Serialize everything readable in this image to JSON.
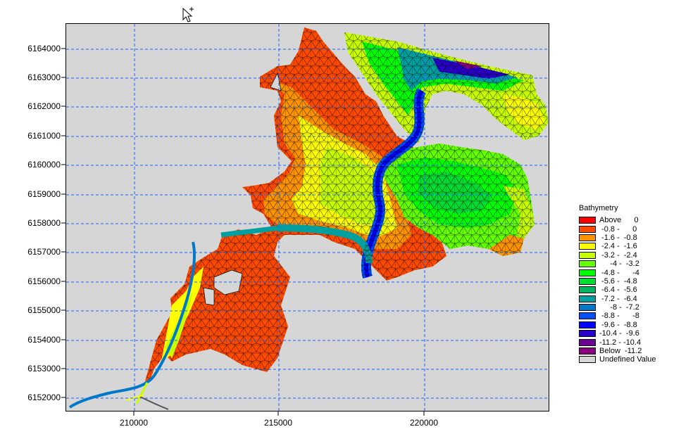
{
  "map": {
    "y_ticks": [
      "6164000",
      "6163000",
      "6162000",
      "6161000",
      "6160000",
      "6159000",
      "6158000",
      "6157000",
      "6156000",
      "6155000",
      "6154000",
      "6153000",
      "6152000"
    ],
    "x_ticks": [
      "210000",
      "215000",
      "220000"
    ],
    "background_color": "#d6d6d6",
    "grid_color": "#1e64ff"
  },
  "legend": {
    "title": "Bathymetry",
    "items": [
      {
        "label": "Above      0",
        "color": "#ff0000"
      },
      {
        "label": " -0.8 -      0",
        "color": "#ff4a00"
      },
      {
        "label": " -1.6 -  -0.8",
        "color": "#ff9400"
      },
      {
        "label": " -2.4 -  -1.6",
        "color": "#ffff00"
      },
      {
        "label": " -3.2 -  -2.4",
        "color": "#c8ff00"
      },
      {
        "label": "     -4 -  -3.2",
        "color": "#64ff00"
      },
      {
        "label": " -4.8 -      -4",
        "color": "#00ff00"
      },
      {
        "label": " -5.6 -  -4.8",
        "color": "#00dc32"
      },
      {
        "label": " -6.4 -  -5.6",
        "color": "#00b464"
      },
      {
        "label": " -7.2 -  -6.4",
        "color": "#00a0a0"
      },
      {
        "label": "     -8 -  -7.2",
        "color": "#0078c8"
      },
      {
        "label": " -8.8 -      -8",
        "color": "#0050ff"
      },
      {
        "label": " -9.6 -  -8.8",
        "color": "#0000ff"
      },
      {
        "label": "-10.4 -  -9.6",
        "color": "#2800c8"
      },
      {
        "label": "-11.2 - -10.4",
        "color": "#6e0096"
      },
      {
        "label": "Below  -11.2",
        "color": "#8c0082"
      },
      {
        "label": "Undefined Value",
        "color": "#d6d6d6"
      }
    ]
  }
}
